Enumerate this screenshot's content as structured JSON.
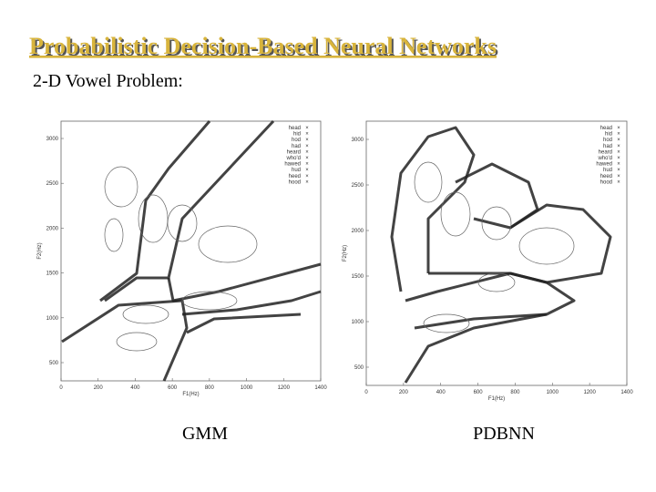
{
  "title": "Probabilistic Decision-Based Neural Networks",
  "subtitle": "2-D Vowel Problem:",
  "figures": [
    {
      "caption": "GMM",
      "xlabel": "F1(Hz)",
      "ylabel": "F2(Hz)",
      "xticks": [
        "0",
        "200",
        "400",
        "600",
        "800",
        "1000",
        "1200",
        "1400"
      ],
      "yticks": [
        "500",
        "1000",
        "1500",
        "2000",
        "2500",
        "3000"
      ],
      "legend": [
        "head",
        "hid",
        "hod",
        "had",
        "heard",
        "who'd",
        "hawed",
        "hud",
        "heed",
        "hood"
      ]
    },
    {
      "caption": "PDBNN",
      "xlabel": "F1(Hz)",
      "ylabel": "F2(Hz)",
      "xticks": [
        "0",
        "200",
        "400",
        "600",
        "800",
        "1000",
        "1200",
        "1400"
      ],
      "yticks": [
        "500",
        "1000",
        "1500",
        "2000",
        "2500",
        "3000"
      ],
      "legend": [
        "head",
        "hid",
        "hod",
        "had",
        "heard",
        "who'd",
        "hawed",
        "hud",
        "heed",
        "hood"
      ]
    }
  ]
}
